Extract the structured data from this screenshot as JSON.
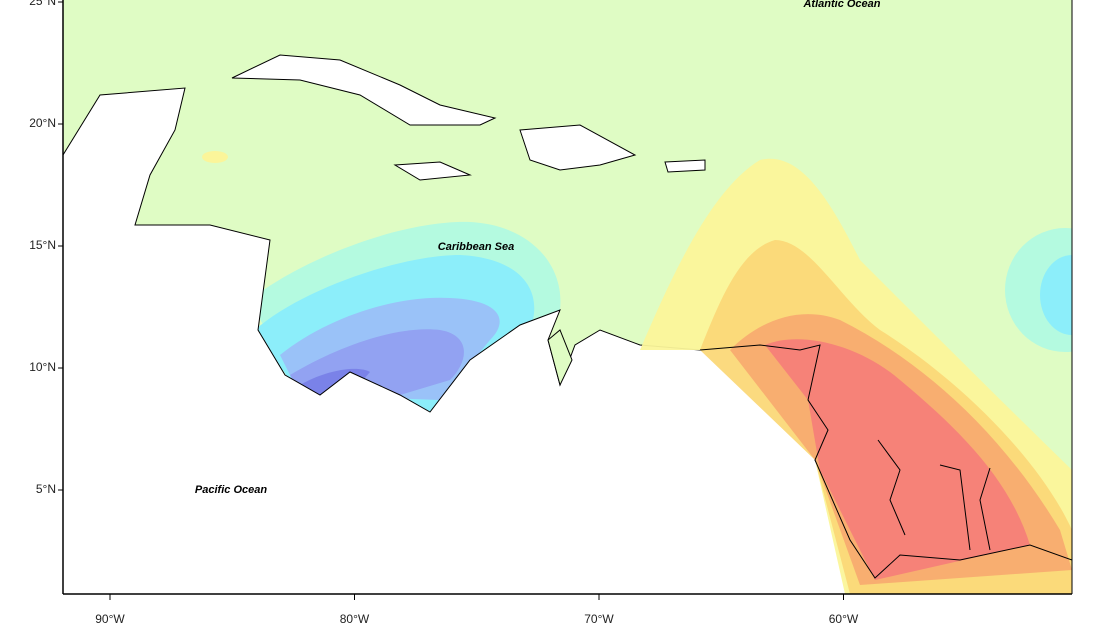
{
  "map": {
    "lat_ticks": [
      {
        "value": 25,
        "label": "25°N"
      },
      {
        "value": 20,
        "label": "20°N"
      },
      {
        "value": 15,
        "label": "15°N"
      },
      {
        "value": 10,
        "label": "10°N"
      },
      {
        "value": 5,
        "label": "5°N"
      }
    ],
    "lon_ticks": [
      {
        "value": -90,
        "label": "90°W"
      },
      {
        "value": -80,
        "label": "80°W"
      },
      {
        "value": -70,
        "label": "70°W"
      },
      {
        "value": -60,
        "label": "60°W"
      }
    ],
    "labels": [
      "Atlantic Ocean",
      "Caribbean Sea",
      "Pacific Ocean"
    ]
  }
}
